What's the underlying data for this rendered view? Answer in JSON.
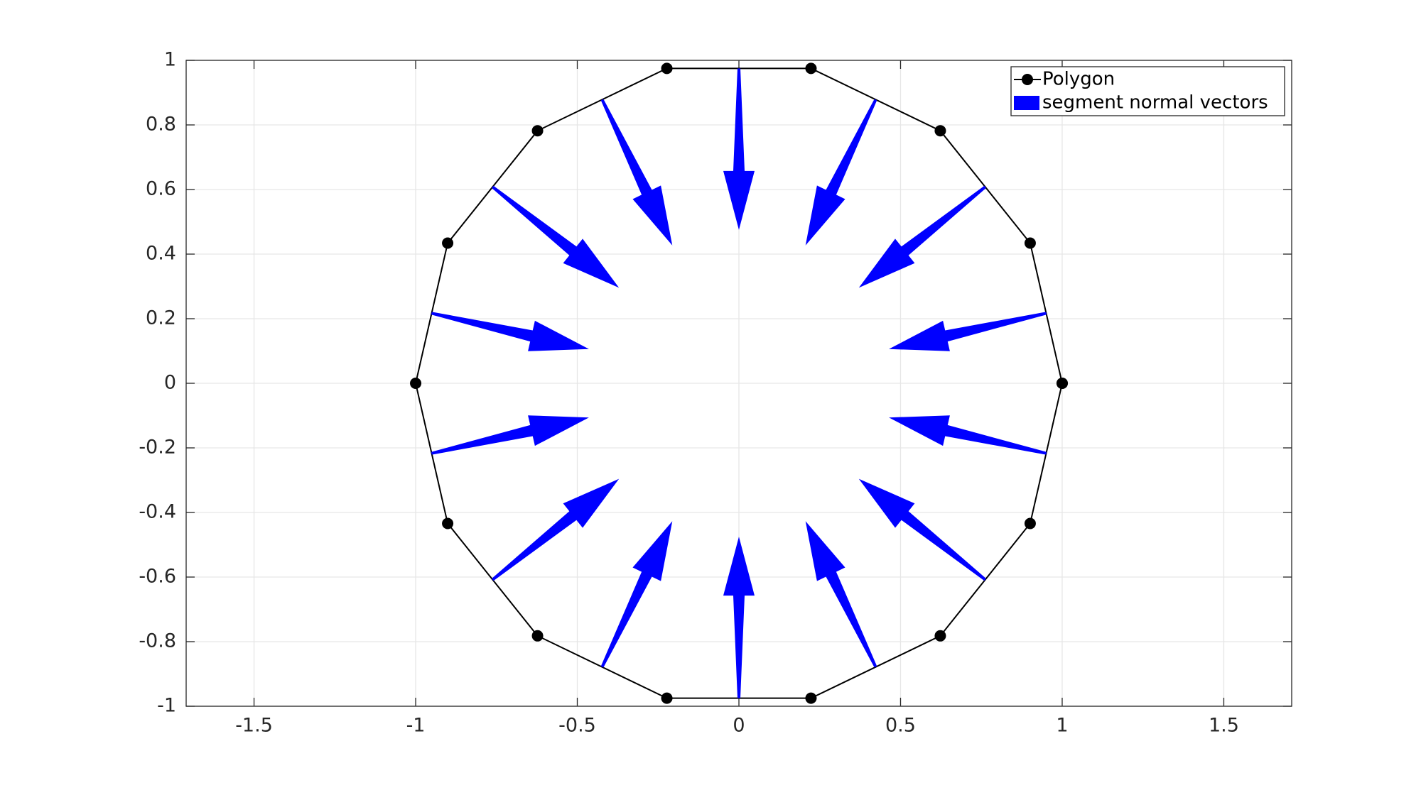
{
  "chart_data": {
    "type": "quiver",
    "xlim": [
      -1.71,
      1.71
    ],
    "ylim": [
      -1,
      1
    ],
    "xticks": [
      -1.5,
      -1,
      -0.5,
      0,
      0.5,
      1,
      1.5
    ],
    "yticks": [
      -1,
      -0.8,
      -0.6,
      -0.4,
      -0.2,
      0,
      0.2,
      0.4,
      0.6,
      0.8,
      1
    ],
    "grid": true,
    "legend": "northeast",
    "series": [
      {
        "name": "Polygon",
        "type": "line",
        "color": "#000000",
        "x": [
          1,
          0.901,
          0.623,
          0.223,
          -0.223,
          -0.623,
          -0.901,
          -1,
          -0.901,
          -0.623,
          -0.223,
          0.223,
          0.623,
          0.901,
          1
        ],
        "y": [
          0,
          0.434,
          0.782,
          0.975,
          0.975,
          0.782,
          0.434,
          0,
          -0.434,
          -0.782,
          -0.975,
          -0.975,
          -0.782,
          -0.434,
          0
        ]
      },
      {
        "name": "segment normal vectors",
        "type": "quiver",
        "color": "#0000ff",
        "x": [
          0.951,
          0.762,
          0.423,
          0,
          -0.423,
          -0.762,
          -0.951,
          -0.951,
          -0.762,
          -0.423,
          0,
          0.423,
          0.762,
          0.951
        ],
        "y": [
          0.217,
          0.608,
          0.878,
          0.975,
          0.878,
          0.608,
          0.217,
          -0.217,
          -0.608,
          -0.878,
          -0.975,
          -0.878,
          -0.608,
          -0.217
        ],
        "u": [
          -0.487,
          -0.391,
          -0.217,
          0,
          0.217,
          0.391,
          0.487,
          0.487,
          0.391,
          0.217,
          0,
          -0.217,
          -0.391,
          -0.487
        ],
        "v": [
          -0.111,
          -0.312,
          -0.451,
          -0.5,
          -0.451,
          -0.312,
          -0.111,
          0.111,
          0.312,
          0.451,
          0.5,
          0.451,
          0.312,
          0.111
        ]
      }
    ]
  }
}
